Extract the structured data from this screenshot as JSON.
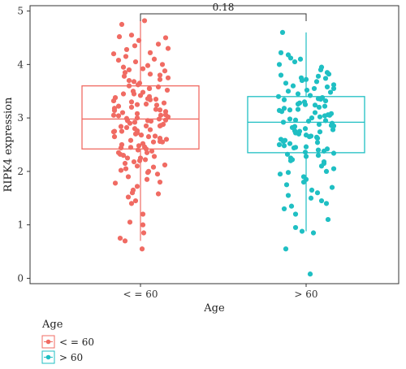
{
  "chart_data": {
    "type": "box",
    "title": "",
    "xlabel": "Age",
    "ylabel": "RIPK4 expression",
    "ylim": [
      -0.1,
      5.1
    ],
    "yticks": [
      0,
      1,
      2,
      3,
      4,
      5
    ],
    "categories": [
      "< = 60",
      "> 60"
    ],
    "series": [
      {
        "name": "< = 60",
        "color": "#F06B63",
        "box": {
          "whisker_low": 0.7,
          "q1": 2.42,
          "median": 2.98,
          "q3": 3.6,
          "whisker_high": 4.82
        },
        "points": [
          4.82,
          4.75,
          4.55,
          4.52,
          4.5,
          4.45,
          4.38,
          4.35,
          4.3,
          4.28,
          4.22,
          4.2,
          4.1,
          4.08,
          4.05,
          4.0,
          3.98,
          3.95,
          3.92,
          3.9,
          3.88,
          3.85,
          3.8,
          3.78,
          3.75,
          3.72,
          3.7,
          3.68,
          3.65,
          3.62,
          3.6,
          3.58,
          3.55,
          3.52,
          3.5,
          3.48,
          3.45,
          3.42,
          3.4,
          3.38,
          3.36,
          3.34,
          3.32,
          3.3,
          3.28,
          3.26,
          3.24,
          3.22,
          3.2,
          3.18,
          3.16,
          3.14,
          3.12,
          3.1,
          3.08,
          3.06,
          3.05,
          3.04,
          3.02,
          3.0,
          2.99,
          2.98,
          2.96,
          2.95,
          2.94,
          2.92,
          2.9,
          2.88,
          2.86,
          2.85,
          2.84,
          2.82,
          2.8,
          2.78,
          2.76,
          2.75,
          2.74,
          2.72,
          2.7,
          2.68,
          2.66,
          2.65,
          2.62,
          2.6,
          2.58,
          2.56,
          2.55,
          2.52,
          2.5,
          2.48,
          2.46,
          2.45,
          2.44,
          2.42,
          2.4,
          2.38,
          2.35,
          2.32,
          2.3,
          2.28,
          2.25,
          2.22,
          2.2,
          2.18,
          2.15,
          2.12,
          2.1,
          2.08,
          2.05,
          2.02,
          2.0,
          1.98,
          1.95,
          1.9,
          1.85,
          1.8,
          1.78,
          1.72,
          1.65,
          1.6,
          1.58,
          1.52,
          1.45,
          1.4,
          1.2,
          1.05,
          1.0,
          0.85,
          0.75,
          0.7,
          0.55,
          3.35,
          3.15,
          2.95,
          2.75,
          2.55,
          3.45,
          3.25,
          2.85,
          2.65,
          3.05,
          3.55,
          2.35,
          4.15,
          3.82,
          2.25
        ],
        "jitter": [
          0.05,
          -0.23,
          -0.11,
          -0.26,
          0.31,
          -0.02,
          0.22,
          -0.07,
          0.34,
          -0.17,
          0.12,
          -0.33,
          0.17,
          -0.27,
          -0.06,
          0.27,
          0.09,
          -0.21,
          0.03,
          -0.14,
          0.3,
          -0.19,
          0.24,
          -0.2,
          0.34,
          0.24,
          -0.14,
          -0.08,
          -0.01,
          -0.03,
          -0.14,
          0.22,
          0.11,
          0.33,
          -0.09,
          0.03,
          -0.08,
          -0.0,
          0.11,
          -0.31,
          0.09,
          0.12,
          -0.33,
          -0.11,
          0.29,
          0.07,
          0.2,
          -0.27,
          -0.11,
          -0.32,
          0.19,
          -0.32,
          0.31,
          -0.22,
          -0.04,
          0.31,
          0.25,
          -0.27,
          0.34,
          -0.04,
          -0.17,
          0.23,
          0.31,
          0.09,
          0.13,
          -0.07,
          -0.13,
          0.28,
          0.25,
          0.24,
          -0.24,
          -0.17,
          -0.07,
          0.12,
          -0.04,
          -0.23,
          -0.33,
          -0.04,
          -0.06,
          0.01,
          0.18,
          0.1,
          0.24,
          0.32,
          -0.12,
          0.24,
          0.16,
          0.03,
          -0.23,
          -0.02,
          0.05,
          -0.12,
          -0.24,
          0.07,
          -0.03,
          0.14,
          0.08,
          -0.25,
          -0.21,
          0.17,
          -0.16,
          0.06,
          -0.01,
          -0.08,
          -0.19,
          0.3,
          -0.04,
          0.16,
          -0.18,
          -0.24,
          0.1,
          0.09,
          0.21,
          -0.15,
          0.08,
          0.24,
          -0.31,
          -0.04,
          -0.09,
          -0.1,
          0.22,
          -0.15,
          -0.06,
          -0.11,
          0.03,
          -0.13,
          0.03,
          0.04,
          -0.25,
          -0.19,
          0.02,
          0.19,
          0.24,
          -0.16,
          -0.32,
          0.27,
          -0.21,
          -0.04,
          0.07,
          -0.32,
          -0.33,
          0.11,
          -0.27,
          -0.18,
          0.12
        ]
      },
      {
        "name": "> 60",
        "color": "#1FBFC3",
        "box": {
          "whisker_low": 0.88,
          "q1": 2.35,
          "median": 2.92,
          "q3": 3.4,
          "whisker_high": 4.6
        },
        "points": [
          4.6,
          4.22,
          4.18,
          4.1,
          4.05,
          4.0,
          3.95,
          3.9,
          3.85,
          3.82,
          3.8,
          3.78,
          3.75,
          3.72,
          3.7,
          3.68,
          3.65,
          3.62,
          3.6,
          3.58,
          3.55,
          3.52,
          3.5,
          3.48,
          3.45,
          3.42,
          3.4,
          3.38,
          3.36,
          3.34,
          3.32,
          3.3,
          3.28,
          3.26,
          3.24,
          3.22,
          3.2,
          3.18,
          3.16,
          3.14,
          3.12,
          3.1,
          3.08,
          3.06,
          3.04,
          3.02,
          3.0,
          2.98,
          2.96,
          2.94,
          2.92,
          2.9,
          2.88,
          2.86,
          2.84,
          2.82,
          2.8,
          2.78,
          2.76,
          2.74,
          2.72,
          2.7,
          2.68,
          2.66,
          2.64,
          2.62,
          2.6,
          2.58,
          2.56,
          2.54,
          2.52,
          2.5,
          2.48,
          2.46,
          2.44,
          2.42,
          2.4,
          2.38,
          2.36,
          2.34,
          2.32,
          2.3,
          2.25,
          2.22,
          2.2,
          2.15,
          2.1,
          2.05,
          2.0,
          1.95,
          1.9,
          1.85,
          1.8,
          1.75,
          1.7,
          1.65,
          1.6,
          1.55,
          1.5,
          1.45,
          1.4,
          1.35,
          1.3,
          1.2,
          1.1,
          0.95,
          0.88,
          0.85,
          0.55,
          0.08,
          3.05,
          2.85,
          3.35,
          2.65,
          3.15,
          2.45,
          3.55,
          2.95,
          2.75,
          3.25,
          1.98,
          2.18,
          3.74,
          4.12,
          2.28
        ],
        "jitter": [
          -0.29,
          -0.31,
          -0.22,
          -0.07,
          -0.14,
          -0.33,
          0.19,
          0.18,
          0.26,
          0.28,
          -0.31,
          0.15,
          -0.06,
          -0.0,
          -0.05,
          0.13,
          -0.25,
          0.34,
          -0.16,
          0.26,
          0.34,
          0.01,
          -0.22,
          0.3,
          -0.1,
          0.05,
          -0.34,
          0.2,
          0.15,
          -0.27,
          0.24,
          -0.02,
          -0.08,
          -0.1,
          0.11,
          0.23,
          0.16,
          -0.27,
          -0.1,
          -0.33,
          -0.3,
          0.11,
          0.31,
          0.27,
          0.23,
          0.17,
          0.07,
          -0.2,
          -0.13,
          0.03,
          -0.28,
          0.32,
          0.16,
          0.31,
          -0.14,
          -0.17,
          -0.01,
          0.33,
          -0.14,
          0.17,
          -0.13,
          -0.09,
          0.0,
          0.06,
          0.13,
          0.14,
          -0.31,
          -0.26,
          -0.28,
          0.14,
          -0.2,
          -0.33,
          -0.27,
          -0.0,
          -0.15,
          0.26,
          0.15,
          0.22,
          -0.01,
          0.34,
          -0.23,
          0.15,
          -0.19,
          -0.17,
          -0.19,
          0.22,
          0.19,
          0.34,
          0.25,
          -0.32,
          -0.03,
          -0.0,
          -0.03,
          -0.24,
          0.32,
          0.07,
          0.14,
          -0.22,
          0.06,
          0.19,
          0.25,
          -0.18,
          -0.27,
          -0.13,
          0.27,
          -0.13,
          -0.05,
          0.09,
          -0.25,
          0.05,
          0.29,
          0.34,
          0.18,
          0.04,
          -0.2,
          -0.13,
          0.1,
          0.24,
          -0.08,
          -0.01,
          -0.22,
          0.22,
          0.24,
          -0.19,
          -0.0
        ]
      }
    ],
    "annotation": {
      "text": "0.18",
      "between": [
        "< = 60",
        "> 60"
      ]
    },
    "legend": {
      "title": "Age",
      "placement": "bottom-left",
      "entries": [
        "< = 60",
        "> 60"
      ]
    },
    "grid": false
  }
}
